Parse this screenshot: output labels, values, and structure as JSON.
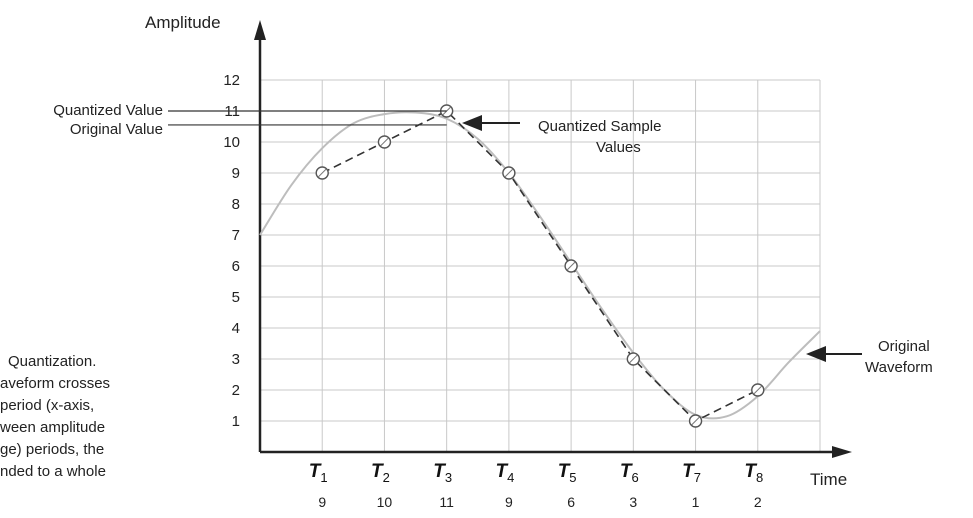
{
  "chart_data": {
    "type": "line",
    "ylabel": "Amplitude",
    "xlabel": "Time",
    "ylim": [
      0,
      12
    ],
    "yticks": [
      1,
      2,
      3,
      4,
      5,
      6,
      7,
      8,
      9,
      10,
      11,
      12
    ],
    "grid": true,
    "sample_times": [
      "1",
      "2",
      "3",
      "4",
      "5",
      "6",
      "7",
      "8"
    ],
    "time_symbol": "T",
    "quantized_values": [
      9,
      10,
      11,
      9,
      6,
      3,
      1,
      2
    ],
    "original_waveform": {
      "x": [
        0,
        0.5,
        1,
        1.5,
        2,
        2.5,
        3,
        3.5,
        4,
        4.5,
        5,
        5.5,
        6,
        6.5,
        7,
        7.5,
        8,
        8.5,
        9
      ],
      "y": [
        7,
        8.6,
        9.8,
        10.6,
        10.9,
        10.95,
        10.75,
        10.1,
        9.0,
        7.6,
        6.1,
        4.6,
        3.2,
        2.0,
        1.2,
        1.15,
        1.8,
        2.9,
        3.9
      ]
    },
    "annotations": {
      "quantized_value": "Quantized Value",
      "original_value": "Original Value",
      "quantized_samples": [
        "Quantized Sample",
        "Values"
      ],
      "original_waveform": [
        "Original",
        "Waveform"
      ]
    },
    "marker_levels": {
      "quantized": 11,
      "original": 10.55
    }
  },
  "caption_lines": [
    "Quantization.",
    "aveform crosses",
    "period (x-axis,",
    "ween amplitude",
    "ge) periods, the",
    "nded to a whole"
  ],
  "colors": {
    "curve": "#bdbdbd",
    "grid": "#c8c8c8",
    "axis": "#222222",
    "dashed": "#333333"
  }
}
